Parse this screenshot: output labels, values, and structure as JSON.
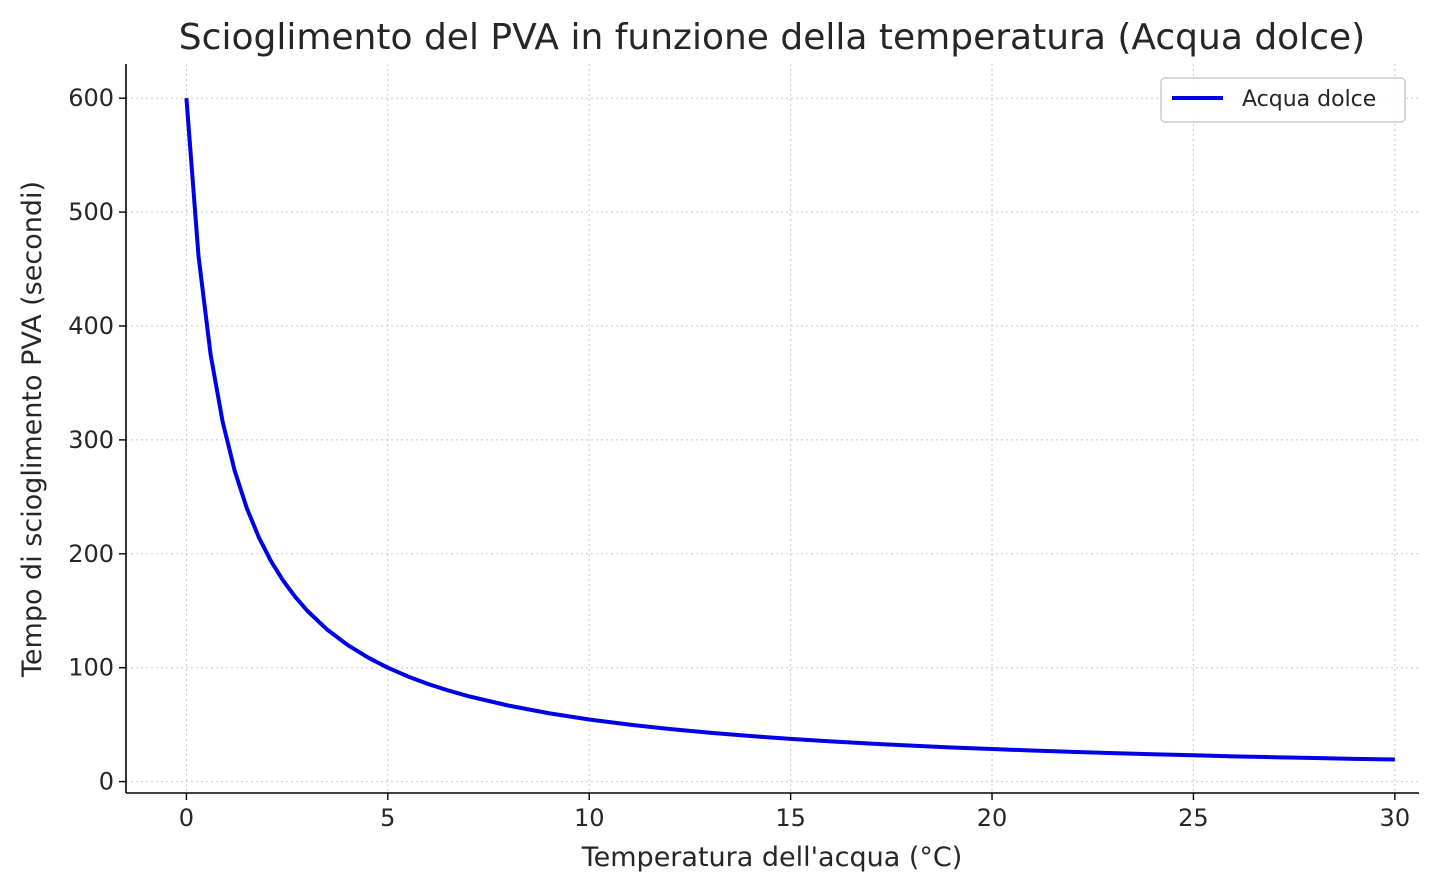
{
  "chart_data": {
    "type": "line",
    "title": "Scioglimento del PVA in funzione della temperatura (Acqua dolce)",
    "xlabel": "Temperatura dell'acqua (°C)",
    "ylabel": "Tempo di scioglimento PVA (secondi)",
    "xlim": [
      -1.5,
      30.6
    ],
    "ylim": [
      -10,
      630
    ],
    "xticks": [
      0,
      5,
      10,
      15,
      20,
      25,
      30
    ],
    "yticks": [
      0,
      100,
      200,
      300,
      400,
      500,
      600
    ],
    "grid": true,
    "legend_position": "top-right",
    "series": [
      {
        "name": "Acqua dolce",
        "color": "#0000e6",
        "x": [
          0,
          0.3,
          0.6,
          0.9,
          1.2,
          1.5,
          1.8,
          2.1,
          2.4,
          2.7,
          3,
          3.5,
          4,
          4.5,
          5,
          5.5,
          6,
          6.5,
          7,
          8,
          9,
          10,
          11,
          12,
          13,
          14,
          15,
          16,
          17,
          18,
          19,
          20,
          21,
          22,
          23,
          24,
          25,
          26,
          27,
          28,
          29,
          30
        ],
        "y": [
          600,
          461.5,
          375,
          315.8,
          272.7,
          240,
          214.3,
          193.5,
          176.5,
          162.2,
          150,
          133.3,
          120,
          109.1,
          100,
          92.3,
          85.7,
          80,
          75,
          66.7,
          60,
          54.5,
          50,
          46.2,
          42.9,
          40,
          37.5,
          35.3,
          33.3,
          31.6,
          30,
          28.6,
          27.3,
          26.1,
          25,
          24,
          23.1,
          22.2,
          21.4,
          20.7,
          20,
          19.4
        ]
      }
    ]
  }
}
